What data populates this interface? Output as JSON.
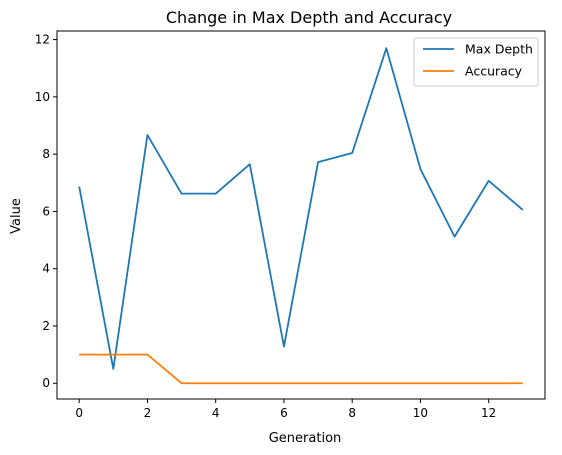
{
  "chart_data": {
    "type": "line",
    "title": "Change in Max Depth and Accuracy",
    "xlabel": "Generation",
    "ylabel": "Value",
    "x": [
      0,
      1,
      2,
      3,
      4,
      5,
      6,
      7,
      8,
      9,
      10,
      11,
      12,
      13
    ],
    "xlim": [
      -0.65,
      13.65
    ],
    "ylim": [
      -0.55,
      12.3
    ],
    "xticks": [
      0,
      2,
      4,
      6,
      8,
      10,
      12
    ],
    "yticks": [
      0,
      2,
      4,
      6,
      8,
      10,
      12
    ],
    "grid": false,
    "legend": "top-right",
    "series": [
      {
        "name": "Max Depth",
        "color": "#1f77b4",
        "values": [
          6.87,
          0.5,
          8.67,
          6.62,
          6.62,
          7.65,
          1.28,
          7.72,
          8.04,
          11.7,
          7.48,
          5.12,
          7.07,
          6.05
        ]
      },
      {
        "name": "Accuracy",
        "color": "#ff7f0e",
        "values": [
          1.0,
          1.0,
          1.0,
          0.0,
          0.0,
          0.0,
          0.0,
          0.0,
          0.0,
          0.0,
          0.0,
          0.0,
          0.0,
          0.0
        ]
      }
    ]
  }
}
